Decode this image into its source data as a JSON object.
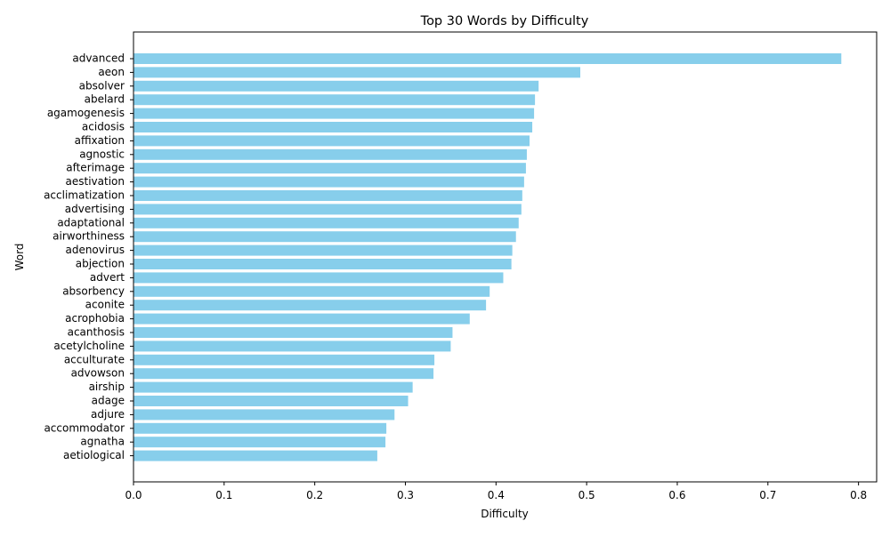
{
  "chart_data": {
    "type": "bar",
    "orientation": "horizontal",
    "title": "Top 30 Words by Difficulty",
    "xlabel": "Difficulty",
    "ylabel": "Word",
    "xlim": [
      0.0,
      0.82
    ],
    "xticks": [
      0.0,
      0.1,
      0.2,
      0.3,
      0.4,
      0.5,
      0.6,
      0.7,
      0.8
    ],
    "xtick_labels": [
      "0.0",
      "0.1",
      "0.2",
      "0.3",
      "0.4",
      "0.5",
      "0.6",
      "0.7",
      "0.8"
    ],
    "grid": false,
    "legend": "none",
    "bar_color": "#87ceeb",
    "categories": [
      "advanced",
      "aeon",
      "absolver",
      "abelard",
      "agamogenesis",
      "acidosis",
      "affixation",
      "agnostic",
      "afterimage",
      "aestivation",
      "acclimatization",
      "advertising",
      "adaptational",
      "airworthiness",
      "adenovirus",
      "abjection",
      "advert",
      "absorbency",
      "aconite",
      "acrophobia",
      "acanthosis",
      "acetylcholine",
      "acculturate",
      "advowson",
      "airship",
      "adage",
      "adjure",
      "accommodator",
      "agnatha",
      "aetiological"
    ],
    "values": [
      0.781,
      0.493,
      0.447,
      0.443,
      0.442,
      0.44,
      0.437,
      0.434,
      0.433,
      0.431,
      0.429,
      0.428,
      0.425,
      0.422,
      0.418,
      0.417,
      0.408,
      0.393,
      0.389,
      0.371,
      0.352,
      0.35,
      0.332,
      0.331,
      0.308,
      0.303,
      0.288,
      0.279,
      0.278,
      0.269
    ]
  }
}
